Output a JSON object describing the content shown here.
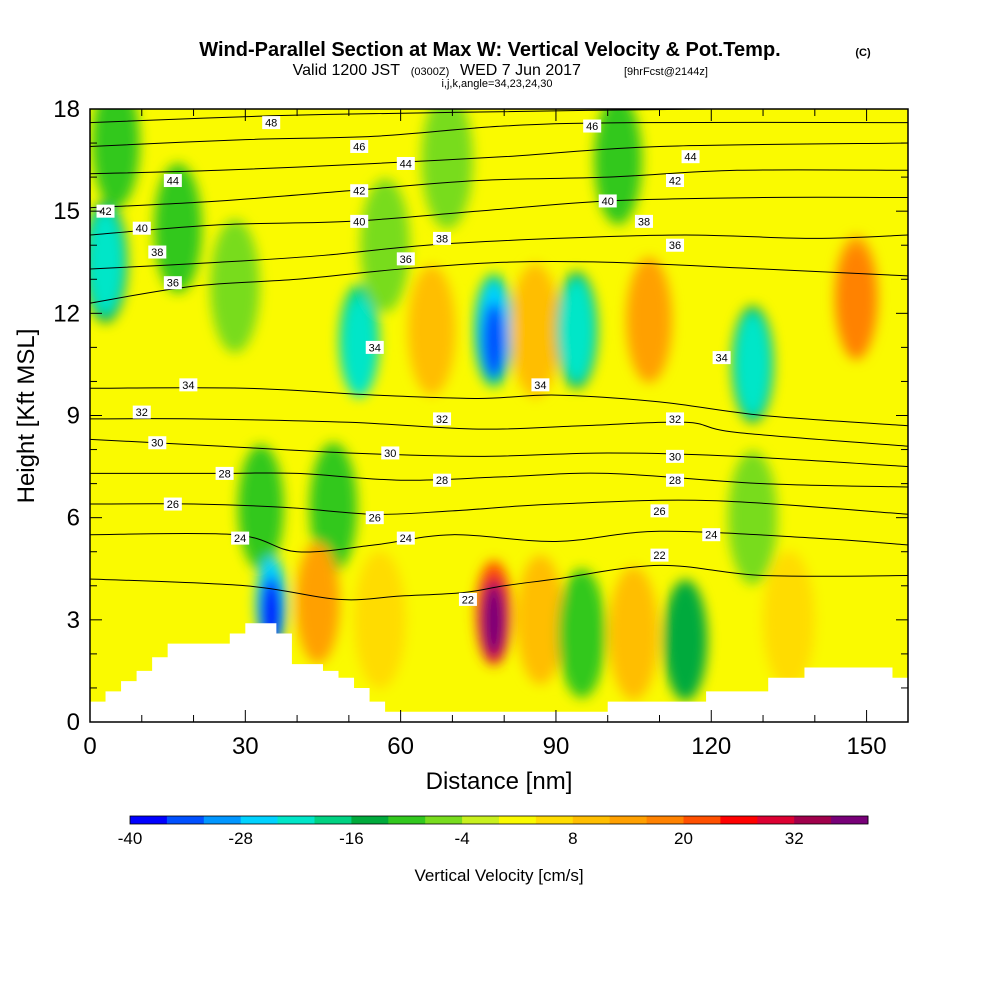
{
  "header": {
    "title": "Wind-Parallel Section at Max W: Vertical Velocity & Pot.Temp.",
    "copyright": "(C)",
    "valid_prefix": "Valid 1200 JST",
    "valid_utc": "(0300Z)",
    "valid_date": "WED 7 Jun 2017",
    "forecast": "[9hrFcst@2144z]",
    "params": "i,j,k,angle=34,23,24,30"
  },
  "chart_data": {
    "type": "heatmap",
    "title": "Wind-Parallel Section at Max W: Vertical Velocity & Pot.Temp.",
    "xlabel": "Distance [nm]",
    "ylabel": "Height [Kft MSL]",
    "xlim": [
      0,
      158
    ],
    "ylim": [
      0,
      18
    ],
    "x_ticks": [
      0,
      30,
      60,
      90,
      120,
      150
    ],
    "y_ticks": [
      0,
      3,
      6,
      9,
      12,
      15,
      18
    ],
    "grid": false,
    "colorbar": {
      "label": "Vertical Velocity [cm/s]",
      "placement": "bottom",
      "tick_values": [
        -40,
        -28,
        -16,
        -4,
        8,
        20,
        32
      ],
      "bins": [
        -40,
        -36,
        -32,
        -28,
        -24,
        -20,
        -16,
        -12,
        -8,
        -4,
        0,
        4,
        8,
        12,
        16,
        20,
        24,
        28,
        32,
        36,
        40
      ],
      "colors": [
        "#0000ff",
        "#0050ff",
        "#0096ff",
        "#00d2ff",
        "#00e6c8",
        "#00d282",
        "#00aa3c",
        "#32c81e",
        "#78dc1e",
        "#c8f01e",
        "#fafa00",
        "#ffdc00",
        "#ffbe00",
        "#ffa000",
        "#ff8200",
        "#ff5000",
        "#ff0000",
        "#dc0032",
        "#a0004b",
        "#780078"
      ]
    },
    "background_w": 1,
    "w_cells": [
      {
        "x": 3,
        "y": 13.5,
        "w": -14
      },
      {
        "x": 3,
        "y": 13.5,
        "w": -22
      },
      {
        "x": 5,
        "y": 17,
        "w": -10
      },
      {
        "x": 17,
        "y": 14.5,
        "w": -10
      },
      {
        "x": 28,
        "y": 12.8,
        "w": -8
      },
      {
        "x": 52,
        "y": 11.2,
        "w": -18
      },
      {
        "x": 52,
        "y": 11,
        "w": -24
      },
      {
        "x": 57,
        "y": 14,
        "w": -8
      },
      {
        "x": 66,
        "y": 11.5,
        "w": 10
      },
      {
        "x": 69,
        "y": 16.5,
        "w": -6
      },
      {
        "x": 78,
        "y": 11.5,
        "w": -18
      },
      {
        "x": 78,
        "y": 11.5,
        "w": -26
      },
      {
        "x": 78,
        "y": 11.2,
        "w": -36
      },
      {
        "x": 86,
        "y": 11.5,
        "w": 8
      },
      {
        "x": 94,
        "y": 11.5,
        "w": -16
      },
      {
        "x": 94,
        "y": 11.5,
        "w": -22
      },
      {
        "x": 108,
        "y": 11.8,
        "w": 12
      },
      {
        "x": 102,
        "y": 16.5,
        "w": -10
      },
      {
        "x": 128,
        "y": 10.5,
        "w": -16
      },
      {
        "x": 128,
        "y": 10.5,
        "w": -22
      },
      {
        "x": 148,
        "y": 12.5,
        "w": 14
      },
      {
        "x": 148,
        "y": 12.3,
        "w": 18
      },
      {
        "x": 33,
        "y": 6.3,
        "w": -12
      },
      {
        "x": 47,
        "y": 6.3,
        "w": -10
      },
      {
        "x": 128,
        "y": 6,
        "w": -8
      },
      {
        "x": 35,
        "y": 3.5,
        "w": -28
      },
      {
        "x": 35,
        "y": 3.2,
        "w": -38
      },
      {
        "x": 44,
        "y": 3.5,
        "w": 14
      },
      {
        "x": 56,
        "y": 3,
        "w": 6
      },
      {
        "x": 78,
        "y": 3.2,
        "w": 22
      },
      {
        "x": 78,
        "y": 3,
        "w": 30
      },
      {
        "x": 78,
        "y": 3,
        "w": 38
      },
      {
        "x": 87,
        "y": 3,
        "w": 10
      },
      {
        "x": 95,
        "y": 2.6,
        "w": -10
      },
      {
        "x": 105,
        "y": 2.6,
        "w": 8
      },
      {
        "x": 115,
        "y": 2.4,
        "w": -14
      },
      {
        "x": 135,
        "y": 3,
        "w": 6
      }
    ],
    "terrain": [
      [
        0,
        0.6
      ],
      [
        3,
        0.6
      ],
      [
        3,
        0.9
      ],
      [
        6,
        0.9
      ],
      [
        6,
        1.2
      ],
      [
        9,
        1.2
      ],
      [
        9,
        1.5
      ],
      [
        12,
        1.5
      ],
      [
        12,
        1.9
      ],
      [
        15,
        1.9
      ],
      [
        15,
        2.3
      ],
      [
        27,
        2.3
      ],
      [
        27,
        2.6
      ],
      [
        30,
        2.6
      ],
      [
        30,
        2.9
      ],
      [
        36,
        2.9
      ],
      [
        36,
        2.6
      ],
      [
        39,
        2.6
      ],
      [
        39,
        1.7
      ],
      [
        45,
        1.7
      ],
      [
        45,
        1.5
      ],
      [
        48,
        1.5
      ],
      [
        48,
        1.3
      ],
      [
        51,
        1.3
      ],
      [
        51,
        1.0
      ],
      [
        54,
        1.0
      ],
      [
        54,
        0.6
      ],
      [
        57,
        0.6
      ],
      [
        57,
        0.3
      ],
      [
        100,
        0.3
      ],
      [
        100,
        0.6
      ],
      [
        119,
        0.6
      ],
      [
        119,
        0.9
      ],
      [
        131,
        0.9
      ],
      [
        131,
        1.3
      ],
      [
        138,
        1.3
      ],
      [
        138,
        1.6
      ],
      [
        155,
        1.6
      ],
      [
        155,
        1.3
      ],
      [
        158,
        1.3
      ]
    ],
    "theta_lines": [
      {
        "value": 22,
        "points": [
          [
            0,
            4.2
          ],
          [
            30,
            4.0
          ],
          [
            48,
            3.6
          ],
          [
            60,
            3.7
          ],
          [
            72,
            3.8
          ],
          [
            80,
            4.0
          ],
          [
            90,
            4.2
          ],
          [
            110,
            4.6
          ],
          [
            130,
            4.3
          ],
          [
            158,
            4.3
          ]
        ]
      },
      {
        "value": 24,
        "points": [
          [
            0,
            5.5
          ],
          [
            28,
            5.5
          ],
          [
            40,
            5.0
          ],
          [
            55,
            5.2
          ],
          [
            70,
            5.5
          ],
          [
            90,
            5.3
          ],
          [
            110,
            5.6
          ],
          [
            140,
            5.4
          ],
          [
            158,
            5.2
          ]
        ]
      },
      {
        "value": 26,
        "points": [
          [
            0,
            6.4
          ],
          [
            20,
            6.4
          ],
          [
            38,
            6.3
          ],
          [
            55,
            6.1
          ],
          [
            70,
            6.2
          ],
          [
            90,
            6.4
          ],
          [
            120,
            6.5
          ],
          [
            158,
            6.1
          ]
        ]
      },
      {
        "value": 28,
        "points": [
          [
            0,
            7.3
          ],
          [
            25,
            7.3
          ],
          [
            40,
            7.3
          ],
          [
            60,
            7.1
          ],
          [
            80,
            7.2
          ],
          [
            100,
            7.3
          ],
          [
            130,
            7.0
          ],
          [
            158,
            6.9
          ]
        ]
      },
      {
        "value": 30,
        "points": [
          [
            0,
            8.3
          ],
          [
            25,
            8.1
          ],
          [
            50,
            7.9
          ],
          [
            75,
            7.8
          ],
          [
            100,
            7.9
          ],
          [
            125,
            7.8
          ],
          [
            158,
            7.5
          ]
        ]
      },
      {
        "value": 32,
        "points": [
          [
            0,
            8.9
          ],
          [
            20,
            8.9
          ],
          [
            50,
            8.8
          ],
          [
            75,
            8.6
          ],
          [
            95,
            8.7
          ],
          [
            115,
            8.8
          ],
          [
            125,
            8.5
          ],
          [
            158,
            8.1
          ]
        ]
      },
      {
        "value": 34,
        "points": [
          [
            0,
            9.8
          ],
          [
            30,
            9.8
          ],
          [
            55,
            9.6
          ],
          [
            75,
            9.5
          ],
          [
            90,
            9.6
          ],
          [
            110,
            9.4
          ],
          [
            130,
            9.0
          ],
          [
            158,
            8.7
          ]
        ]
      },
      {
        "value": 36,
        "points": [
          [
            0,
            12.3
          ],
          [
            20,
            12.8
          ],
          [
            40,
            13.0
          ],
          [
            60,
            13.3
          ],
          [
            80,
            13.5
          ],
          [
            100,
            13.5
          ],
          [
            130,
            13.3
          ],
          [
            158,
            13.1
          ]
        ]
      },
      {
        "value": 38,
        "points": [
          [
            0,
            13.3
          ],
          [
            25,
            13.5
          ],
          [
            45,
            13.7
          ],
          [
            65,
            14.0
          ],
          [
            90,
            14.2
          ],
          [
            115,
            14.3
          ],
          [
            140,
            14.2
          ],
          [
            158,
            14.3
          ]
        ]
      },
      {
        "value": 40,
        "points": [
          [
            0,
            14.3
          ],
          [
            25,
            14.6
          ],
          [
            50,
            14.7
          ],
          [
            75,
            15.0
          ],
          [
            100,
            15.3
          ],
          [
            130,
            15.4
          ],
          [
            158,
            15.4
          ]
        ]
      },
      {
        "value": 42,
        "points": [
          [
            0,
            15.1
          ],
          [
            25,
            15.3
          ],
          [
            50,
            15.6
          ],
          [
            75,
            15.9
          ],
          [
            100,
            16.0
          ],
          [
            125,
            16.2
          ],
          [
            158,
            16.2
          ]
        ]
      },
      {
        "value": 44,
        "points": [
          [
            0,
            16.1
          ],
          [
            25,
            16.2
          ],
          [
            55,
            16.4
          ],
          [
            80,
            16.6
          ],
          [
            110,
            16.9
          ],
          [
            158,
            17.0
          ]
        ]
      },
      {
        "value": 46,
        "points": [
          [
            0,
            16.9
          ],
          [
            30,
            17.1
          ],
          [
            55,
            17.2
          ],
          [
            80,
            17.5
          ],
          [
            105,
            17.6
          ],
          [
            158,
            17.6
          ]
        ]
      },
      {
        "value": 48,
        "points": [
          [
            0,
            17.6
          ],
          [
            35,
            17.8
          ],
          [
            70,
            17.9
          ],
          [
            120,
            18.0
          ],
          [
            158,
            18.0
          ]
        ]
      }
    ],
    "theta_labels": [
      {
        "text": "48",
        "x": 35,
        "y": 17.6
      },
      {
        "text": "46",
        "x": 52,
        "y": 16.9
      },
      {
        "text": "46",
        "x": 97,
        "y": 17.5
      },
      {
        "text": "44",
        "x": 16,
        "y": 15.9
      },
      {
        "text": "44",
        "x": 61,
        "y": 16.4
      },
      {
        "text": "44",
        "x": 116,
        "y": 16.6
      },
      {
        "text": "42",
        "x": 3,
        "y": 15
      },
      {
        "text": "42",
        "x": 52,
        "y": 15.6
      },
      {
        "text": "42",
        "x": 113,
        "y": 15.9
      },
      {
        "text": "40",
        "x": 10,
        "y": 14.5
      },
      {
        "text": "40",
        "x": 52,
        "y": 14.7
      },
      {
        "text": "40",
        "x": 100,
        "y": 15.3
      },
      {
        "text": "38",
        "x": 13,
        "y": 13.8
      },
      {
        "text": "38",
        "x": 68,
        "y": 14.2
      },
      {
        "text": "38",
        "x": 107,
        "y": 14.7
      },
      {
        "text": "36",
        "x": 16,
        "y": 12.9
      },
      {
        "text": "36",
        "x": 61,
        "y": 13.6
      },
      {
        "text": "36",
        "x": 113,
        "y": 14.0
      },
      {
        "text": "34",
        "x": 19,
        "y": 9.9
      },
      {
        "text": "34",
        "x": 55,
        "y": 11.0
      },
      {
        "text": "34",
        "x": 87,
        "y": 9.9
      },
      {
        "text": "34",
        "x": 122,
        "y": 10.7
      },
      {
        "text": "32",
        "x": 10,
        "y": 9.1
      },
      {
        "text": "32",
        "x": 68,
        "y": 8.9
      },
      {
        "text": "32",
        "x": 113,
        "y": 8.9
      },
      {
        "text": "30",
        "x": 13,
        "y": 8.2
      },
      {
        "text": "30",
        "x": 58,
        "y": 7.9
      },
      {
        "text": "30",
        "x": 113,
        "y": 7.8
      },
      {
        "text": "28",
        "x": 26,
        "y": 7.3
      },
      {
        "text": "28",
        "x": 68,
        "y": 7.1
      },
      {
        "text": "28",
        "x": 113,
        "y": 7.1
      },
      {
        "text": "26",
        "x": 16,
        "y": 6.4
      },
      {
        "text": "26",
        "x": 55,
        "y": 6.0
      },
      {
        "text": "26",
        "x": 110,
        "y": 6.2
      },
      {
        "text": "24",
        "x": 29,
        "y": 5.4
      },
      {
        "text": "24",
        "x": 61,
        "y": 5.4
      },
      {
        "text": "24",
        "x": 120,
        "y": 5.5
      },
      {
        "text": "22",
        "x": 73,
        "y": 3.6
      },
      {
        "text": "22",
        "x": 110,
        "y": 4.9
      }
    ]
  }
}
